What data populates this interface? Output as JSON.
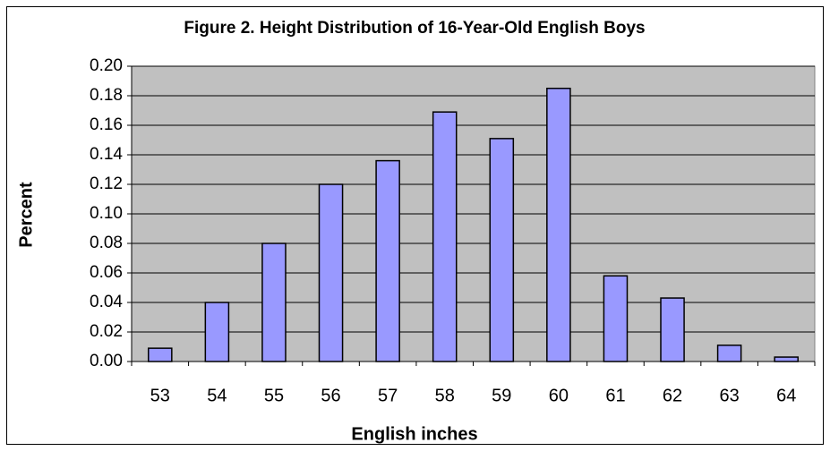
{
  "chart_data": {
    "type": "bar",
    "title": "Figure 2. Height Distribution of 16-Year-Old English Boys",
    "xlabel": "English inches",
    "ylabel": "Percent",
    "categories": [
      "53",
      "54",
      "55",
      "56",
      "57",
      "58",
      "59",
      "60",
      "61",
      "62",
      "63",
      "64"
    ],
    "values": [
      0.009,
      0.04,
      0.08,
      0.12,
      0.136,
      0.169,
      0.151,
      0.185,
      0.058,
      0.043,
      0.011,
      0.003
    ],
    "color": "#9999ff",
    "ylim": [
      0,
      0.2
    ],
    "yticks": [
      {
        "value": 0,
        "label": "0.00"
      },
      {
        "value": 0.02,
        "label": "0.02"
      },
      {
        "value": 0.04,
        "label": "0.04"
      },
      {
        "value": 0.06,
        "label": "0.06"
      },
      {
        "value": 0.08,
        "label": "0.08"
      },
      {
        "value": 0.1,
        "label": "0.10"
      },
      {
        "value": 0.12,
        "label": "0.12"
      },
      {
        "value": 0.14,
        "label": "0.14"
      },
      {
        "value": 0.16,
        "label": "0.16"
      },
      {
        "value": 0.18,
        "label": "0.18"
      },
      {
        "value": 0.2,
        "label": "0.20"
      }
    ],
    "grid": true
  }
}
